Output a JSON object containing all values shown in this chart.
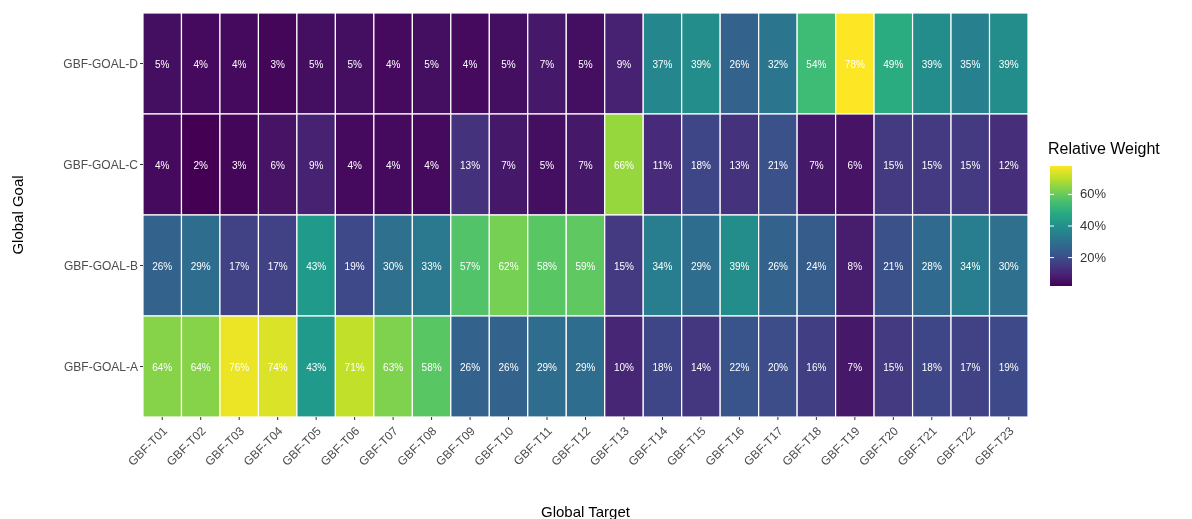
{
  "chart_data": {
    "type": "heatmap",
    "xlabel": "Global Target",
    "ylabel": "Global Goal",
    "clabel": "Relative Weight",
    "categories": [
      "GBF-T01",
      "GBF-T02",
      "GBF-T03",
      "GBF-T04",
      "GBF-T05",
      "GBF-T06",
      "GBF-T07",
      "GBF-T08",
      "GBF-T09",
      "GBF-T10",
      "GBF-T11",
      "GBF-T12",
      "GBF-T13",
      "GBF-T14",
      "GBF-T15",
      "GBF-T16",
      "GBF-T17",
      "GBF-T18",
      "GBF-T19",
      "GBF-T20",
      "GBF-T21",
      "GBF-T22",
      "GBF-T23"
    ],
    "y_categories": [
      "GBF-GOAL-D",
      "GBF-GOAL-C",
      "GBF-GOAL-B",
      "GBF-GOAL-A"
    ],
    "cells": [
      [
        5,
        4,
        4,
        3,
        5,
        5,
        4,
        5,
        4,
        5,
        7,
        5,
        9,
        37,
        39,
        26,
        32,
        54,
        78,
        49,
        39,
        35,
        39
      ],
      [
        4,
        2,
        3,
        6,
        9,
        4,
        4,
        4,
        13,
        7,
        5,
        7,
        66,
        11,
        18,
        13,
        21,
        7,
        6,
        15,
        15,
        15,
        12
      ],
      [
        26,
        29,
        17,
        17,
        43,
        19,
        30,
        33,
        57,
        62,
        58,
        59,
        15,
        34,
        29,
        39,
        26,
        24,
        8,
        21,
        28,
        34,
        30
      ],
      [
        64,
        64,
        76,
        74,
        43,
        71,
        63,
        58,
        26,
        26,
        29,
        29,
        10,
        18,
        14,
        22,
        20,
        16,
        7,
        15,
        18,
        17,
        19
      ]
    ],
    "cell_labels": [
      [
        "5%",
        "4%",
        "4%",
        "3%",
        "5%",
        "5%",
        "4%",
        "5%",
        "4%",
        "5%",
        "7%",
        "5%",
        "9%",
        "37%",
        "39%",
        "26%",
        "32%",
        "54%",
        "78%",
        "49%",
        "39%",
        "35%",
        "39%"
      ],
      [
        "4%",
        "2%",
        "3%",
        "6%",
        "9%",
        "4%",
        "4%",
        "4%",
        "13%",
        "7%",
        "5%",
        "7%",
        "66%",
        "11%",
        "18%",
        "13%",
        "21%",
        "7%",
        "6%",
        "15%",
        "15%",
        "15%",
        "12%"
      ],
      [
        "26%",
        "29%",
        "17%",
        "17%",
        "43%",
        "19%",
        "30%",
        "33%",
        "57%",
        "62%",
        "58%",
        "59%",
        "15%",
        "34%",
        "29%",
        "39%",
        "26%",
        "24%",
        "8%",
        "21%",
        "28%",
        "34%",
        "30%"
      ],
      [
        "64%",
        "64%",
        "76%",
        "74%",
        "43%",
        "71%",
        "63%",
        "58%",
        "26%",
        "26%",
        "29%",
        "29%",
        "10%",
        "18%",
        "14%",
        "22%",
        "20%",
        "16%",
        "7%",
        "15%",
        "18%",
        "17%",
        "19%"
      ]
    ],
    "clim": [
      2,
      78
    ],
    "cticks": [
      {
        "value": 20,
        "label": "20%"
      },
      {
        "value": 40,
        "label": "40%"
      },
      {
        "value": 60,
        "label": "60%"
      }
    ]
  }
}
